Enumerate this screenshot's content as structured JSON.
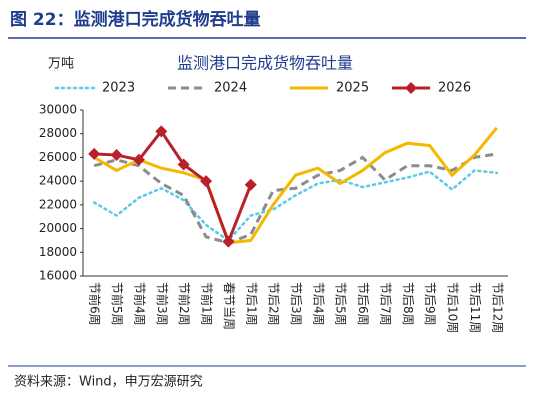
{
  "figure_title": "图 22：监测港口完成货物吞吐量",
  "source": "资料来源：Wind，申万宏源研究",
  "chart_data": {
    "type": "line",
    "title": "监测港口完成货物吞吐量",
    "y_unit": "万吨",
    "categories": [
      "节前6周",
      "节前5周",
      "节前4周",
      "节前3周",
      "节前2周",
      "节前1周",
      "春节当周",
      "节后1周",
      "节后2周",
      "节后3周",
      "节后4周",
      "节后5周",
      "节后6周",
      "节后7周",
      "节后8周",
      "节后9周",
      "节后10周",
      "节后11周",
      "节后12周"
    ],
    "series": [
      {
        "name": "2023",
        "color": "#5bc8e8",
        "dash": "dotted",
        "values": [
          22200,
          21100,
          22600,
          23400,
          22400,
          20300,
          19000,
          21100,
          21600,
          22800,
          23800,
          24100,
          23500,
          23900,
          24300,
          24800,
          23300,
          24900,
          24700
        ]
      },
      {
        "name": "2024",
        "color": "#8c8c8c",
        "dash": "dashed",
        "values": [
          25300,
          25800,
          25300,
          23800,
          22800,
          19300,
          18800,
          19500,
          23200,
          23400,
          24500,
          24900,
          26000,
          24100,
          25300,
          25300,
          24900,
          26000,
          26300
        ]
      },
      {
        "name": "2025",
        "color": "#f5b800",
        "dash": "solid",
        "values": [
          26000,
          24900,
          25800,
          25100,
          24700,
          24100,
          18800,
          19000,
          22000,
          24500,
          25100,
          23800,
          24900,
          26400,
          27200,
          27000,
          24500,
          26200,
          28500
        ]
      },
      {
        "name": "2026",
        "color": "#b8202a",
        "dash": "solid",
        "marker": "diamond",
        "values": [
          26300,
          26200,
          25800,
          28200,
          25400,
          24000,
          18900,
          23700,
          null,
          null,
          null,
          null,
          null,
          null,
          null,
          null,
          null,
          null,
          null
        ]
      }
    ],
    "ylim": [
      16000,
      30000
    ],
    "yticks": [
      16000,
      18000,
      20000,
      22000,
      24000,
      26000,
      28000,
      30000
    ]
  }
}
